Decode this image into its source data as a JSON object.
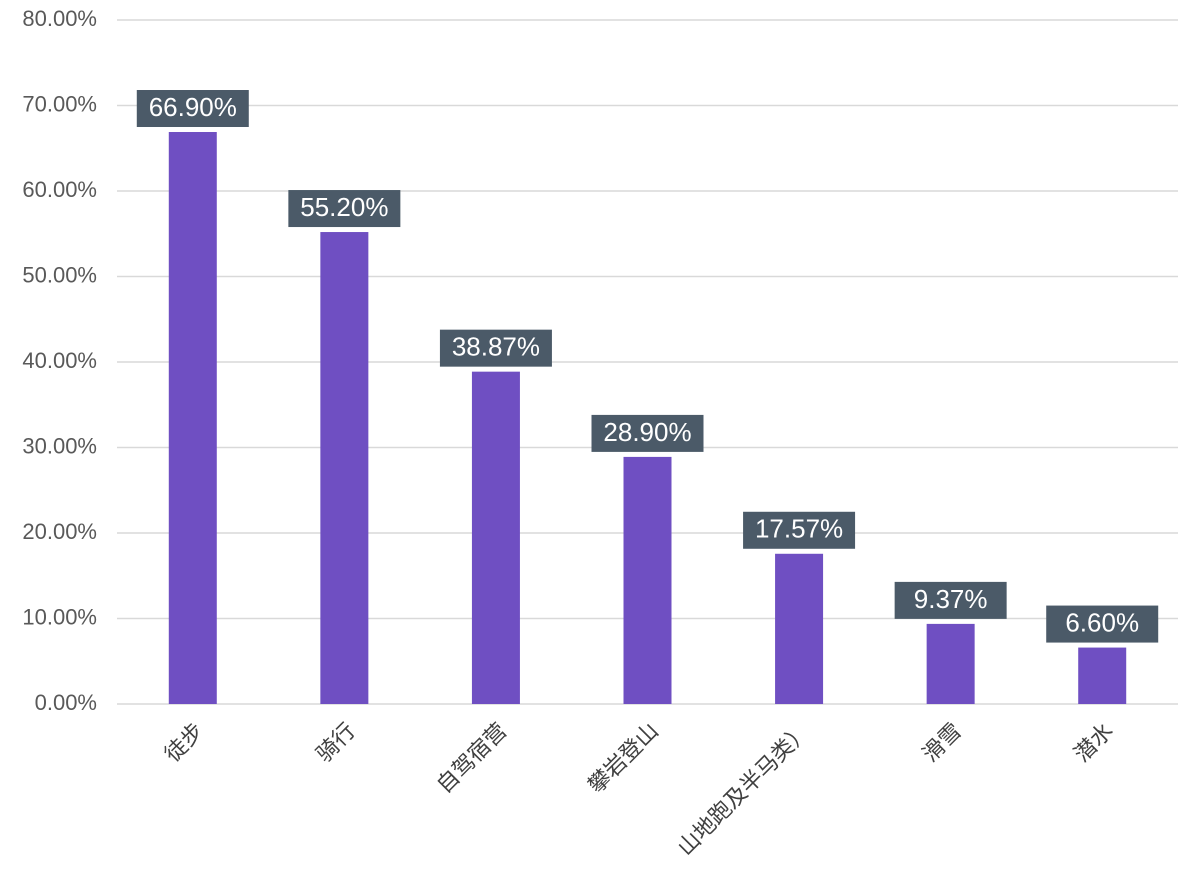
{
  "chart_data": {
    "type": "bar",
    "categories": [
      "徒步",
      "骑行",
      "自驾宿营",
      "攀岩登山",
      "山地跑及半马类）",
      "滑雪",
      "潜水"
    ],
    "values": [
      66.9,
      55.2,
      38.87,
      28.9,
      17.57,
      9.37,
      6.6
    ],
    "value_labels": [
      "66.90%",
      "55.20%",
      "38.87%",
      "28.90%",
      "17.57%",
      "9.37%",
      "6.60%"
    ],
    "color": "#6f4fc2",
    "ylim": [
      0,
      80
    ],
    "yticks": [
      {
        "value": 0,
        "label": "0.00%"
      },
      {
        "value": 10,
        "label": "10.00%"
      },
      {
        "value": 20,
        "label": "20.00%"
      },
      {
        "value": 30,
        "label": "30.00%"
      },
      {
        "value": 40,
        "label": "40.00%"
      },
      {
        "value": 50,
        "label": "50.00%"
      },
      {
        "value": 60,
        "label": "60.00%"
      },
      {
        "value": 70,
        "label": "70.00%"
      },
      {
        "value": 80,
        "label": "80.00%"
      }
    ],
    "grid": true
  }
}
